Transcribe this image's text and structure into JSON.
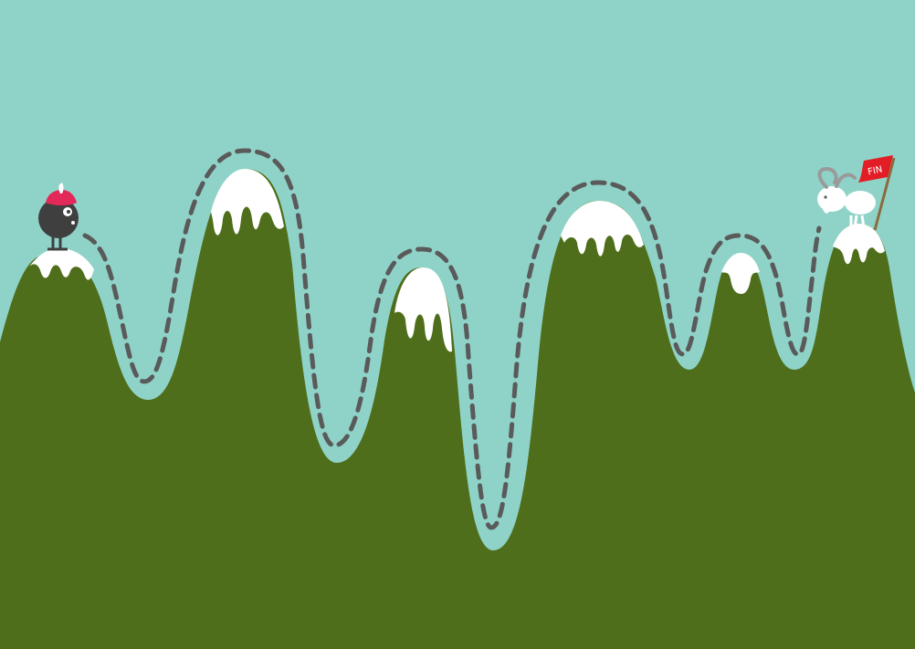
{
  "colors": {
    "sky": "#8fd3c8",
    "mountain": "#4f6e1b",
    "snow": "#ffffff",
    "path": "#5a5a5a",
    "flag": "#e31d25",
    "flag_pole": "#8b6a3e",
    "character": "#3f3f3f",
    "hat": "#e3285a",
    "goat": "#ffffff",
    "goat_horn": "#9a9a9a"
  },
  "finish_flag": {
    "label": "FIN"
  },
  "icons": {
    "player": "round-character-with-red-hat",
    "goal_animal": "mountain-goat-icon",
    "goal_marker": "finish-flag-icon"
  }
}
